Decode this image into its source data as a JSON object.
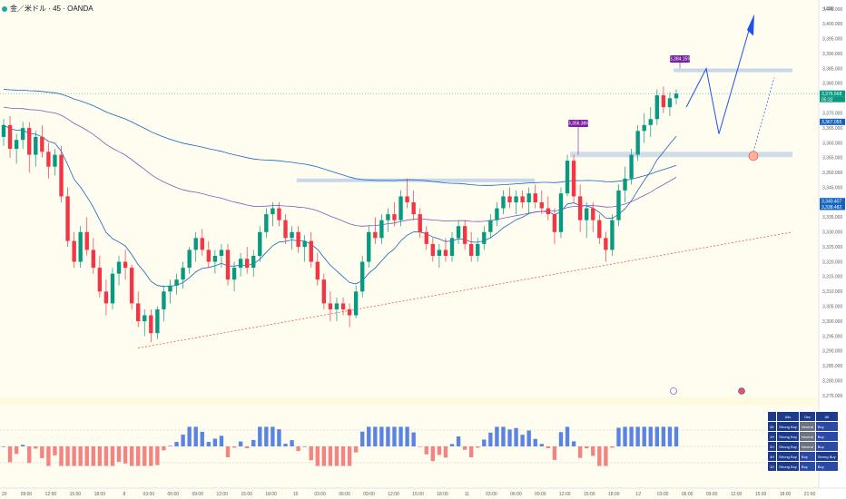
{
  "header": {
    "symbol": "金／米ドル · 45 · OANDA"
  },
  "price_axis": {
    "currency": "USD",
    "ticks": [
      "3,405.000",
      "3,400.000",
      "3,395.000",
      "3,390.000",
      "3,385.000",
      "3,380.000",
      "3,375.000",
      "3,370.000",
      "3,365.000",
      "3,360.000",
      "3,355.000",
      "3,350.000",
      "3,345.000",
      "3,340.000",
      "3,335.000",
      "3,330.000",
      "3,325.000",
      "3,320.000",
      "3,315.000",
      "3,310.000",
      "3,305.000",
      "3,300.000",
      "3,295.000",
      "3,290.000",
      "3,285.000",
      "3,280.000",
      "3,275.000"
    ],
    "current_price": "3,376.568",
    "countdown": "05:32",
    "ma_tag_1": "3,367.055",
    "ma_tag_2": "3,340.407",
    "ma_tag_3": "3,338.482"
  },
  "osc_axis": {
    "ticks": [
      "1.00",
      "0.50",
      "0.00",
      "-0.50"
    ],
    "current": "0.40"
  },
  "time_axis": [
    "20",
    "09:00",
    "12:00",
    "15:00",
    "18:00",
    "8",
    "03:00",
    "06:00",
    "09:00",
    "12:00",
    "15:00",
    "18:00",
    "10",
    "03:00",
    "06:00",
    "09:00",
    "12:00",
    "15:00",
    "18:00",
    "11",
    "03:00",
    "06:00",
    "09:00",
    "12:00",
    "15:00",
    "18:00",
    "12",
    "03:00",
    "06:00",
    "09:00",
    "12:00",
    "15:00",
    "18:00",
    "21:00"
  ],
  "labels": {
    "high_1": "3,356.386",
    "high_2": "3,384.159"
  },
  "colors": {
    "up": "#089981",
    "down": "#f23645",
    "ma_fast": "#1565c0",
    "ma_slow": "#7e57c2",
    "badge": "#7b1fa2",
    "projection": "#1e53e5"
  },
  "table": {
    "headers": [
      "Alls",
      "Osc",
      "All"
    ],
    "rows": [
      {
        "tf": "45",
        "c": [
          "Strong Buy",
          "Neutral",
          "Buy"
        ]
      },
      {
        "tf": "1H",
        "c": [
          "Strong Buy",
          "Neutral",
          "Buy"
        ]
      },
      {
        "tf": "2H",
        "c": [
          "Strong Buy",
          "Neutral",
          "Buy"
        ]
      },
      {
        "tf": "4H",
        "c": [
          "Strong Buy",
          "Buy",
          "Strong Buy"
        ]
      },
      {
        "tf": "1D",
        "c": [
          "Strong Buy",
          "Buy",
          "Buy"
        ]
      }
    ]
  },
  "chart_data": {
    "type": "candlestick",
    "symbol": "金／米ドル · 45 · OANDA",
    "y_unit": "USD",
    "ylim": [
      3272,
      3409
    ],
    "last_price": 3376.568,
    "moving_average_last_values": [
      3367.055,
      3340.407,
      3338.482
    ],
    "annotated_highs": [
      3356.386,
      3384.159
    ],
    "candles": [
      [
        3362,
        3368,
        3359,
        3366
      ],
      [
        3366,
        3369,
        3355,
        3358
      ],
      [
        3358,
        3363,
        3353,
        3361
      ],
      [
        3361,
        3367,
        3358,
        3365
      ],
      [
        3365,
        3367,
        3350,
        3356
      ],
      [
        3356,
        3364,
        3352,
        3362
      ],
      [
        3362,
        3366,
        3355,
        3357
      ],
      [
        3357,
        3360,
        3348,
        3352
      ],
      [
        3352,
        3358,
        3349,
        3356
      ],
      [
        3356,
        3359,
        3340,
        3342
      ],
      [
        3342,
        3345,
        3325,
        3327
      ],
      [
        3327,
        3330,
        3318,
        3320
      ],
      [
        3320,
        3332,
        3318,
        3330
      ],
      [
        3330,
        3335,
        3322,
        3324
      ],
      [
        3324,
        3328,
        3316,
        3318
      ],
      [
        3318,
        3322,
        3308,
        3310
      ],
      [
        3310,
        3314,
        3302,
        3306
      ],
      [
        3306,
        3318,
        3304,
        3316
      ],
      [
        3316,
        3322,
        3312,
        3320
      ],
      [
        3320,
        3324,
        3314,
        3318
      ],
      [
        3318,
        3319,
        3304,
        3306
      ],
      [
        3306,
        3310,
        3298,
        3300
      ],
      [
        3300,
        3304,
        3295,
        3302
      ],
      [
        3302,
        3304,
        3293,
        3296
      ],
      [
        3296,
        3305,
        3294,
        3304
      ],
      [
        3304,
        3312,
        3300,
        3310
      ],
      [
        3310,
        3314,
        3306,
        3312
      ],
      [
        3312,
        3316,
        3309,
        3314
      ],
      [
        3314,
        3320,
        3311,
        3318
      ],
      [
        3318,
        3325,
        3316,
        3324
      ],
      [
        3324,
        3330,
        3320,
        3328
      ],
      [
        3328,
        3331,
        3322,
        3324
      ],
      [
        3324,
        3327,
        3318,
        3320
      ],
      [
        3320,
        3324,
        3316,
        3322
      ],
      [
        3322,
        3326,
        3318,
        3324
      ],
      [
        3324,
        3326,
        3312,
        3314
      ],
      [
        3314,
        3320,
        3310,
        3318
      ],
      [
        3318,
        3323,
        3315,
        3321
      ],
      [
        3321,
        3325,
        3316,
        3318
      ],
      [
        3318,
        3324,
        3315,
        3322
      ],
      [
        3322,
        3332,
        3320,
        3330
      ],
      [
        3330,
        3338,
        3328,
        3336
      ],
      [
        3336,
        3340,
        3332,
        3338
      ],
      [
        3338,
        3340,
        3332,
        3334
      ],
      [
        3334,
        3336,
        3326,
        3328
      ],
      [
        3328,
        3332,
        3324,
        3330
      ],
      [
        3330,
        3332,
        3323,
        3325
      ],
      [
        3325,
        3329,
        3320,
        3327
      ],
      [
        3327,
        3330,
        3318,
        3320
      ],
      [
        3320,
        3323,
        3312,
        3314
      ],
      [
        3314,
        3316,
        3304,
        3306
      ],
      [
        3306,
        3310,
        3300,
        3304
      ],
      [
        3304,
        3308,
        3300,
        3306
      ],
      [
        3306,
        3308,
        3302,
        3304
      ],
      [
        3304,
        3306,
        3298,
        3302
      ],
      [
        3302,
        3312,
        3301,
        3310
      ],
      [
        3310,
        3322,
        3308,
        3320
      ],
      [
        3320,
        3332,
        3318,
        3330
      ],
      [
        3330,
        3335,
        3326,
        3328
      ],
      [
        3328,
        3336,
        3326,
        3334
      ],
      [
        3334,
        3338,
        3330,
        3336
      ],
      [
        3336,
        3340,
        3332,
        3334
      ],
      [
        3334,
        3344,
        3332,
        3342
      ],
      [
        3342,
        3348,
        3338,
        3340
      ],
      [
        3340,
        3344,
        3334,
        3336
      ],
      [
        3336,
        3338,
        3328,
        3330
      ],
      [
        3330,
        3332,
        3324,
        3326
      ],
      [
        3326,
        3328,
        3320,
        3322
      ],
      [
        3322,
        3326,
        3318,
        3324
      ],
      [
        3324,
        3328,
        3320,
        3322
      ],
      [
        3322,
        3330,
        3320,
        3328
      ],
      [
        3328,
        3334,
        3326,
        3332
      ],
      [
        3332,
        3334,
        3324,
        3326
      ],
      [
        3326,
        3330,
        3320,
        3322
      ],
      [
        3322,
        3328,
        3320,
        3326
      ],
      [
        3326,
        3332,
        3324,
        3330
      ],
      [
        3330,
        3336,
        3328,
        3334
      ],
      [
        3334,
        3340,
        3332,
        3338
      ],
      [
        3338,
        3344,
        3336,
        3342
      ],
      [
        3342,
        3345,
        3338,
        3340
      ],
      [
        3340,
        3344,
        3336,
        3342
      ],
      [
        3342,
        3344,
        3338,
        3340
      ],
      [
        3340,
        3345,
        3336,
        3343
      ],
      [
        3343,
        3346,
        3338,
        3340
      ],
      [
        3340,
        3344,
        3336,
        3338
      ],
      [
        3338,
        3342,
        3334,
        3336
      ],
      [
        3336,
        3338,
        3326,
        3330
      ],
      [
        3330,
        3345,
        3328,
        3343
      ],
      [
        3343,
        3356,
        3342,
        3354
      ],
      [
        3354,
        3356,
        3340,
        3342
      ],
      [
        3342,
        3346,
        3330,
        3334
      ],
      [
        3334,
        3340,
        3328,
        3338
      ],
      [
        3338,
        3340,
        3330,
        3334
      ],
      [
        3334,
        3336,
        3326,
        3328
      ],
      [
        3328,
        3330,
        3320,
        3324
      ],
      [
        3324,
        3336,
        3322,
        3334
      ],
      [
        3334,
        3346,
        3332,
        3344
      ],
      [
        3344,
        3352,
        3340,
        3348
      ],
      [
        3348,
        3358,
        3346,
        3356
      ],
      [
        3356,
        3366,
        3354,
        3364
      ],
      [
        3364,
        3370,
        3360,
        3366
      ],
      [
        3366,
        3372,
        3362,
        3368
      ],
      [
        3368,
        3378,
        3366,
        3376
      ],
      [
        3376,
        3379,
        3370,
        3372
      ],
      [
        3372,
        3377,
        3369,
        3375
      ],
      [
        3375,
        3378,
        3373,
        3376.568
      ]
    ]
  }
}
